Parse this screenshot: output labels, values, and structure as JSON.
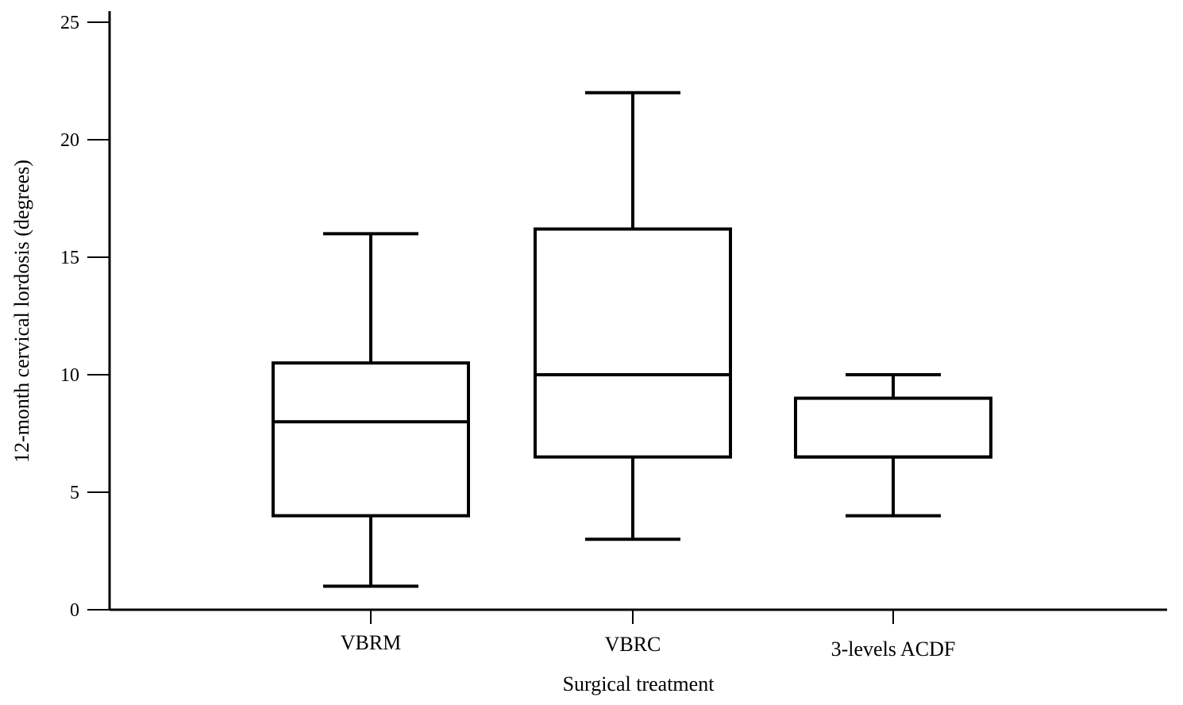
{
  "chart_data": {
    "type": "boxplot",
    "xlabel": "Surgical treatment",
    "ylabel": "12-month cervical lordosis (degrees)",
    "ylim": [
      0,
      25
    ],
    "yticks": [
      0,
      5,
      10,
      15,
      20,
      25
    ],
    "grid": false,
    "categories": [
      "VBRM",
      "VBRC",
      "3-levels ACDF"
    ],
    "boxes": [
      {
        "category": "VBRM",
        "whisker_low": 1,
        "q1": 4,
        "median": 8,
        "q3": 10.5,
        "whisker_high": 16
      },
      {
        "category": "VBRC",
        "whisker_low": 3,
        "q1": 6.5,
        "median": 10,
        "q3": 16.2,
        "whisker_high": 22
      },
      {
        "category": "3-levels ACDF",
        "whisker_low": 4,
        "q1": 6.5,
        "median": 6.5,
        "q3": 9,
        "whisker_high": 10
      }
    ]
  }
}
